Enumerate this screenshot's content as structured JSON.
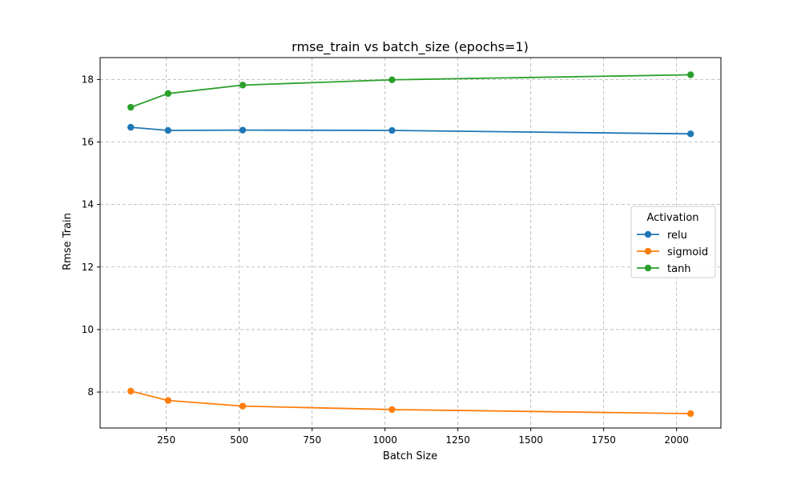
{
  "chart_data": {
    "type": "line",
    "title": "rmse_train vs batch_size (epochs=1)",
    "xlabel": "Batch Size",
    "ylabel": "Rmse Train",
    "xlim": [
      23,
      2152
    ],
    "ylim": [
      6.85,
      18.7
    ],
    "xticks": [
      250,
      500,
      750,
      1000,
      1250,
      1500,
      1750,
      2000
    ],
    "yticks": [
      8,
      10,
      12,
      14,
      16,
      18
    ],
    "grid": true,
    "legend": {
      "title": "Activation",
      "placement": "center-right"
    },
    "x": [
      128,
      256,
      512,
      1024,
      2048
    ],
    "series": [
      {
        "name": "relu",
        "color": "#1f77b4",
        "values": [
          16.47,
          16.37,
          16.38,
          16.37,
          16.26
        ]
      },
      {
        "name": "sigmoid",
        "color": "#ff7f0e",
        "values": [
          8.03,
          7.73,
          7.55,
          7.44,
          7.31
        ]
      },
      {
        "name": "tanh",
        "color": "#2ca02c",
        "values": [
          17.11,
          17.55,
          17.82,
          17.99,
          18.15
        ]
      }
    ]
  }
}
